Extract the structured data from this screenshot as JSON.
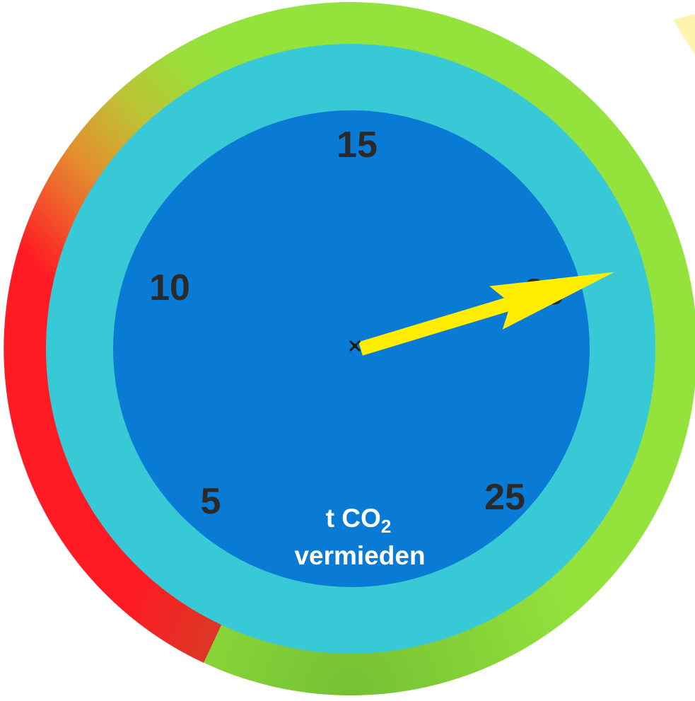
{
  "gauge": {
    "ticks": [
      {
        "value": 5,
        "label": "5"
      },
      {
        "value": 10,
        "label": "10"
      },
      {
        "value": 15,
        "label": "15"
      },
      {
        "value": 20,
        "label": "20"
      },
      {
        "value": 25,
        "label": "25"
      }
    ],
    "needle_value": 21.1,
    "unit_prefix": "t CO",
    "unit_subscript": "2",
    "caption_line2": "vermieden",
    "colors": {
      "outer_ring_green": "#94e23c",
      "outer_ring_orange": "#f06a2a",
      "outer_ring_red": "#ff1a24",
      "middle_ring": "#38c9d6",
      "inner_dial": "#0a7bd4",
      "needle": "#ffee00",
      "tick_text": "#2a2a2a",
      "caption_text": "#ffffff",
      "corner_wedge": "#fff3b0"
    }
  }
}
